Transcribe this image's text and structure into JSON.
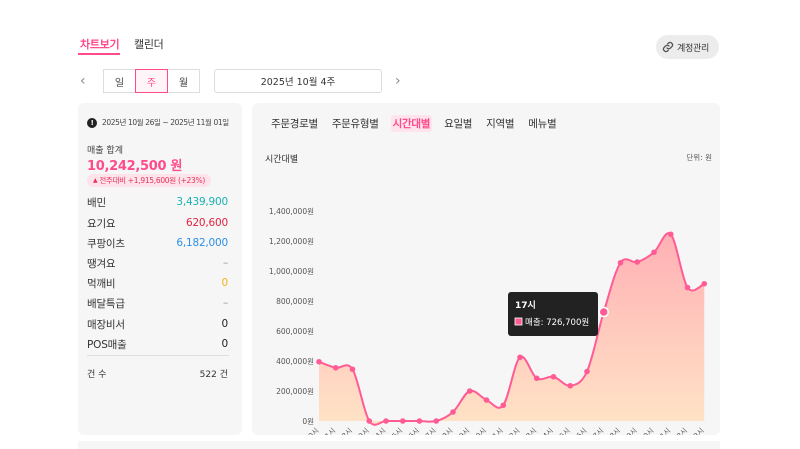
{
  "topnav": {
    "tab_chart": "차트보기",
    "tab_calendar": "캘린더",
    "account_button": "계정관리",
    "account_icon": "link-icon"
  },
  "period": {
    "day": "일",
    "week": "주",
    "month": "월",
    "selected": "주",
    "current_week": "2025년 10월 4주"
  },
  "summary": {
    "date_range": "2025년 10월 26일 ~ 2025년 11월 01일",
    "sales_label": "매출 합계",
    "sales_total": "10,242,500 원",
    "delta_text": "전주대비 +1,915,600원 (+23%)",
    "delta_icon": "up-triangle",
    "channels": [
      {
        "label": "배민",
        "value": "3,439,900",
        "color": "#1bb1b1"
      },
      {
        "label": "요기요",
        "value": "620,600",
        "color": "#e2233f"
      },
      {
        "label": "쿠팡이츠",
        "value": "6,182,000",
        "color": "#2d8fe6"
      },
      {
        "label": "땡겨요",
        "value": "–",
        "color": "#999999"
      },
      {
        "label": "먹깨비",
        "value": "0",
        "color": "#f5b21b"
      },
      {
        "label": "배달특급",
        "value": "–",
        "color": "#999999"
      },
      {
        "label": "매장비서",
        "value": "0",
        "color": "#222222"
      },
      {
        "label": "POS매출",
        "value": "0",
        "color": "#222222"
      }
    ],
    "count_label": "건 수",
    "count_value": "522 건"
  },
  "subtabs": [
    "주문경로별",
    "주문유형별",
    "시간대별",
    "요일별",
    "지역별",
    "메뉴별"
  ],
  "active_subtab": "시간대별",
  "chart_header": {
    "title": "시간대별",
    "unit": "단위: 원"
  },
  "chart_data": {
    "type": "area",
    "categories": [
      "00시",
      "01시",
      "02시",
      "03시",
      "04시",
      "05시",
      "06시",
      "07시",
      "08시",
      "09시",
      "10시",
      "11시",
      "12시",
      "13시",
      "14시",
      "15시",
      "16시",
      "17시",
      "18시",
      "19시",
      "20시",
      "21시",
      "22시",
      "23시"
    ],
    "values": [
      395000,
      355000,
      345000,
      0,
      0,
      0,
      0,
      0,
      60000,
      200000,
      140000,
      105000,
      425000,
      285000,
      295000,
      235000,
      330000,
      726700,
      1055000,
      1060000,
      1125000,
      1245000,
      890000,
      915000
    ],
    "yticks": [
      "0원",
      "200,000원",
      "400,000원",
      "600,000원",
      "800,000원",
      "1,000,000원",
      "1,200,000원",
      "1,400,000원"
    ],
    "ylim": [
      0,
      1400000
    ],
    "line_color": "#ff5b95",
    "fill_top": "#ffb0b5",
    "fill_bottom": "#ffe3c6",
    "tooltip": {
      "title": "17시",
      "label": "매출: 726,700원"
    }
  }
}
